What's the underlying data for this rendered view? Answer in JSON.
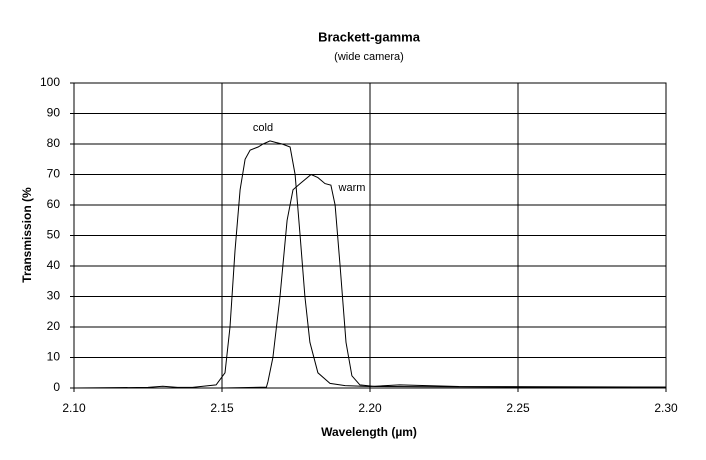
{
  "chart_data": {
    "type": "line",
    "title": "Brackett-gamma",
    "subtitle": "(wide camera)",
    "x_label": "Wavelength (µm)",
    "y_label": "Transmission (%",
    "xlim": [
      2.1,
      2.3
    ],
    "xticks": [
      {
        "value": 2.1,
        "label": "2.10"
      },
      {
        "value": 2.15,
        "label": "2.15"
      },
      {
        "value": 2.2,
        "label": "2.20"
      },
      {
        "value": 2.25,
        "label": "2.25"
      },
      {
        "value": 2.3,
        "label": "2.30"
      }
    ],
    "ylim": [
      0,
      100
    ],
    "yticks": [
      0,
      10,
      20,
      30,
      40,
      50,
      60,
      70,
      80,
      90,
      100
    ],
    "grid": true,
    "series": [
      {
        "name": "cold",
        "color": "#000000",
        "x": [
          2.1,
          2.125,
          2.13,
          2.135,
          2.14,
          2.148,
          2.151,
          2.1527,
          2.1544,
          2.1561,
          2.1578,
          2.1595,
          2.1622,
          2.1639,
          2.1662,
          2.1682,
          2.1703,
          2.173,
          2.1747,
          2.1764,
          2.178,
          2.1797,
          2.1824,
          2.1865,
          2.1916,
          2.2,
          2.21,
          2.23,
          2.3
        ],
        "values": [
          0,
          0.2,
          0.6,
          0.2,
          0.2,
          1,
          5,
          20,
          45,
          65,
          75,
          78,
          79,
          80,
          81,
          80.5,
          80,
          79,
          70,
          50,
          30,
          15,
          5,
          1.5,
          0.8,
          0.5,
          1,
          0.5,
          0.3
        ]
      },
      {
        "name": "warm",
        "color": "#000000",
        "x": [
          2.1,
          2.15,
          2.165,
          2.1655,
          2.1672,
          2.1696,
          2.172,
          2.174,
          2.1764,
          2.1801,
          2.1824,
          2.1848,
          2.1868,
          2.1882,
          2.1899,
          2.1919,
          2.1939,
          2.1966,
          2.2017,
          2.25,
          2.3
        ],
        "values": [
          0,
          0,
          0.3,
          2,
          10,
          30,
          55,
          65,
          67,
          70,
          69,
          67,
          66.5,
          60,
          40,
          15,
          4,
          1,
          0.5,
          0.3,
          0.3
        ]
      }
    ]
  }
}
